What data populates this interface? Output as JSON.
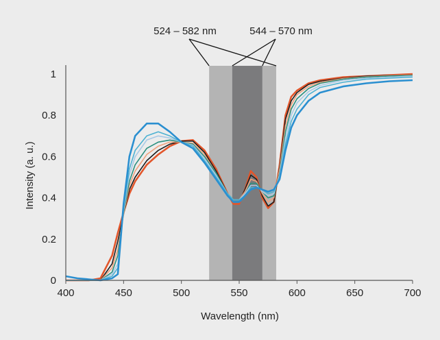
{
  "chart_data": {
    "type": "line",
    "xlabel": "Wavelength (nm)",
    "ylabel": "Intensity (a. u.)",
    "xlim": [
      400,
      700
    ],
    "ylim": [
      0,
      1
    ],
    "xticks": [
      "400",
      "450",
      "500",
      "550",
      "600",
      "650",
      "700"
    ],
    "yticks": [
      "0",
      "0.2",
      "0.4",
      "0.6",
      "0.8",
      "1"
    ],
    "grid": false,
    "bands": [
      {
        "label": "524 – 582 nm",
        "start": 524,
        "end": 582,
        "color": "#b4b4b4"
      },
      {
        "label": "544 – 570 nm",
        "start": 544,
        "end": 570,
        "color": "#7b7b7d"
      }
    ],
    "x": [
      400,
      410,
      420,
      430,
      440,
      445,
      450,
      455,
      460,
      470,
      480,
      490,
      500,
      510,
      520,
      530,
      540,
      545,
      550,
      555,
      560,
      565,
      570,
      575,
      580,
      585,
      590,
      595,
      600,
      610,
      620,
      640,
      660,
      680,
      700
    ],
    "series": [
      {
        "color": "#e2562b",
        "values": [
          0.0,
          0.0,
          0.0,
          0.01,
          0.12,
          0.23,
          0.33,
          0.42,
          0.48,
          0.56,
          0.61,
          0.65,
          0.675,
          0.68,
          0.63,
          0.54,
          0.42,
          0.37,
          0.37,
          0.44,
          0.53,
          0.5,
          0.4,
          0.35,
          0.38,
          0.56,
          0.8,
          0.89,
          0.92,
          0.955,
          0.97,
          0.985,
          0.99,
          0.995,
          1.0
        ]
      },
      {
        "color": "#1c1c1c",
        "values": [
          0.0,
          0.0,
          0.0,
          0.0,
          0.08,
          0.19,
          0.32,
          0.44,
          0.5,
          0.58,
          0.63,
          0.66,
          0.675,
          0.675,
          0.62,
          0.53,
          0.42,
          0.38,
          0.38,
          0.44,
          0.51,
          0.49,
          0.41,
          0.36,
          0.38,
          0.55,
          0.78,
          0.87,
          0.91,
          0.95,
          0.965,
          0.98,
          0.99,
          0.993,
          0.995
        ]
      },
      {
        "color": "#f0a17c",
        "values": [
          0.0,
          0.0,
          0.0,
          0.0,
          0.06,
          0.15,
          0.32,
          0.46,
          0.53,
          0.61,
          0.65,
          0.67,
          0.67,
          0.665,
          0.61,
          0.52,
          0.42,
          0.39,
          0.39,
          0.43,
          0.49,
          0.48,
          0.42,
          0.38,
          0.4,
          0.54,
          0.75,
          0.85,
          0.9,
          0.94,
          0.96,
          0.978,
          0.987,
          0.992,
          0.995
        ]
      },
      {
        "color": "#2a8f7e",
        "values": [
          0.0,
          0.0,
          0.0,
          0.0,
          0.04,
          0.12,
          0.33,
          0.48,
          0.56,
          0.64,
          0.67,
          0.68,
          0.67,
          0.66,
          0.6,
          0.52,
          0.42,
          0.39,
          0.39,
          0.42,
          0.47,
          0.47,
          0.43,
          0.4,
          0.41,
          0.52,
          0.72,
          0.83,
          0.88,
          0.93,
          0.955,
          0.975,
          0.985,
          0.99,
          0.993
        ]
      },
      {
        "color": "#a7c9e6",
        "values": [
          0.0,
          0.0,
          0.0,
          0.0,
          0.03,
          0.08,
          0.34,
          0.51,
          0.6,
          0.68,
          0.7,
          0.69,
          0.67,
          0.655,
          0.59,
          0.51,
          0.42,
          0.39,
          0.39,
          0.42,
          0.46,
          0.46,
          0.43,
          0.41,
          0.42,
          0.51,
          0.69,
          0.8,
          0.86,
          0.915,
          0.945,
          0.97,
          0.98,
          0.985,
          0.99
        ]
      },
      {
        "color": "#4cb1d2",
        "values": [
          0.0,
          0.0,
          0.0,
          0.0,
          0.02,
          0.06,
          0.35,
          0.54,
          0.63,
          0.7,
          0.72,
          0.7,
          0.67,
          0.65,
          0.58,
          0.5,
          0.42,
          0.39,
          0.39,
          0.41,
          0.45,
          0.45,
          0.44,
          0.42,
          0.43,
          0.5,
          0.66,
          0.77,
          0.83,
          0.9,
          0.935,
          0.96,
          0.975,
          0.98,
          0.985
        ]
      },
      {
        "color": "#2a8fd0",
        "values": [
          0.02,
          0.01,
          0.005,
          0.0,
          0.01,
          0.03,
          0.37,
          0.6,
          0.7,
          0.76,
          0.76,
          0.72,
          0.67,
          0.64,
          0.57,
          0.49,
          0.41,
          0.38,
          0.38,
          0.41,
          0.44,
          0.45,
          0.44,
          0.43,
          0.44,
          0.49,
          0.63,
          0.74,
          0.8,
          0.87,
          0.91,
          0.94,
          0.955,
          0.965,
          0.97
        ]
      }
    ]
  }
}
